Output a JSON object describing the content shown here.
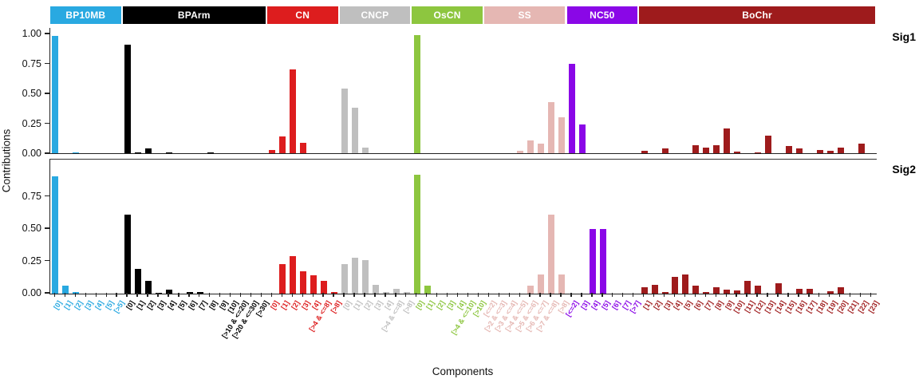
{
  "chart_data": {
    "type": "bar",
    "title": "",
    "xlabel": "Components",
    "ylabel": "Contributions",
    "grid": false,
    "legend_position": "top-strips",
    "facets": [
      "Sig1",
      "Sig2"
    ],
    "y_ticks": {
      "Sig1": [
        "1.00",
        "0.75",
        "0.50",
        "0.25",
        "0.00"
      ],
      "Sig2": [
        "0.75",
        "0.50",
        "0.25",
        "0.00"
      ]
    },
    "ylim": [
      0,
      1.0
    ],
    "groups": [
      {
        "name": "BP10MB",
        "color": "#29A9E1",
        "categories": [
          "[0]",
          "[1]",
          "[2]",
          "[3]",
          "[4]",
          "[5]",
          "[>5]"
        ],
        "Sig1": [
          0.98,
          0,
          0.005,
          0,
          0,
          0,
          0
        ],
        "Sig2": [
          0.91,
          0.06,
          0.01,
          0,
          0,
          0,
          0
        ]
      },
      {
        "name": "BPArm",
        "color": "#000000",
        "categories": [
          "[0]",
          "[1]",
          "[2]",
          "[3]",
          "[4]",
          "[5]",
          "[6]",
          "[7]",
          "[8]",
          "[9]",
          "[10]",
          "[>10 & <=20]",
          "[>20 & <=30]",
          "[>30]"
        ],
        "Sig1": [
          0.91,
          0.01,
          0.04,
          0,
          0.01,
          0,
          0,
          0,
          0.005,
          0,
          0,
          0,
          0,
          0
        ],
        "Sig2": [
          0.61,
          0.19,
          0.1,
          0.005,
          0.03,
          0,
          0.01,
          0.015,
          0,
          0,
          0,
          0,
          0,
          0
        ]
      },
      {
        "name": "CN",
        "color": "#DD1D1E",
        "categories": [
          "[0]",
          "[1]",
          "[2]",
          "[3]",
          "[4]",
          "[>4 & <=8]",
          "[>8]"
        ],
        "Sig1": [
          0.03,
          0.14,
          0.7,
          0.09,
          0,
          0,
          0
        ],
        "Sig2": [
          0,
          0.23,
          0.29,
          0.17,
          0.14,
          0.1,
          0.01
        ]
      },
      {
        "name": "CNCP",
        "color": "#BFBFBF",
        "categories": [
          "[0]",
          "[1]",
          "[2]",
          "[3]",
          "[4]",
          "[>4 & <=8]",
          "[>8]"
        ],
        "Sig1": [
          0.54,
          0.38,
          0.05,
          0,
          0,
          0,
          0
        ],
        "Sig2": [
          0.23,
          0.28,
          0.26,
          0.07,
          0.015,
          0.04,
          0.015
        ]
      },
      {
        "name": "OsCN",
        "color": "#8DC63F",
        "categories": [
          "[0]",
          "[1]",
          "[2]",
          "[3]",
          "[4]",
          "[>4 & <=10]",
          "[>10]"
        ],
        "Sig1": [
          0.99,
          0,
          0,
          0,
          0,
          0,
          0
        ],
        "Sig2": [
          0.92,
          0.06,
          0,
          0,
          0,
          0,
          0
        ]
      },
      {
        "name": "SS",
        "color": "#E5B7B3",
        "categories": [
          "[<=2]",
          "[>2 & <=3]",
          "[>3 & <=4]",
          "[>4 & <=5]",
          "[>5 & <=6]",
          "[>6 & <=7]",
          "[>7 & <=8]",
          "[>8]"
        ],
        "Sig1": [
          0,
          0,
          0,
          0.02,
          0.11,
          0.08,
          0.43,
          0.3
        ],
        "Sig2": [
          0,
          0,
          0,
          0,
          0.06,
          0.15,
          0.61,
          0.15
        ]
      },
      {
        "name": "NC50",
        "color": "#8A07E7",
        "categories": [
          "[<=2]",
          "[3]",
          "[4]",
          "[5]",
          "[6]",
          "[7]",
          "[>7]"
        ],
        "Sig1": [
          0.75,
          0.24,
          0,
          0,
          0,
          0,
          0
        ],
        "Sig2": [
          0,
          0,
          0.5,
          0.5,
          0,
          0,
          0
        ]
      },
      {
        "name": "BoChr",
        "color": "#9E1B1C",
        "categories": [
          "[1]",
          "[2]",
          "[3]",
          "[4]",
          "[5]",
          "[6]",
          "[7]",
          "[8]",
          "[9]",
          "[10]",
          "[11]",
          "[12]",
          "[13]",
          "[14]",
          "[15]",
          "[16]",
          "[17]",
          "[18]",
          "[19]",
          "[20]",
          "[21]",
          "[22]",
          "[23]"
        ],
        "Sig1": [
          0.02,
          0,
          0.04,
          0,
          0,
          0.07,
          0.05,
          0.07,
          0.21,
          0.015,
          0,
          0.01,
          0.15,
          0,
          0.06,
          0.04,
          0,
          0.03,
          0.02,
          0.05,
          0,
          0.08,
          0
        ],
        "Sig2": [
          0.05,
          0.07,
          0.015,
          0.13,
          0.15,
          0.06,
          0.01,
          0.05,
          0.03,
          0.025,
          0.1,
          0.06,
          0,
          0.08,
          0,
          0.035,
          0.035,
          0,
          0.02,
          0.05,
          0,
          0,
          0
        ]
      }
    ]
  }
}
